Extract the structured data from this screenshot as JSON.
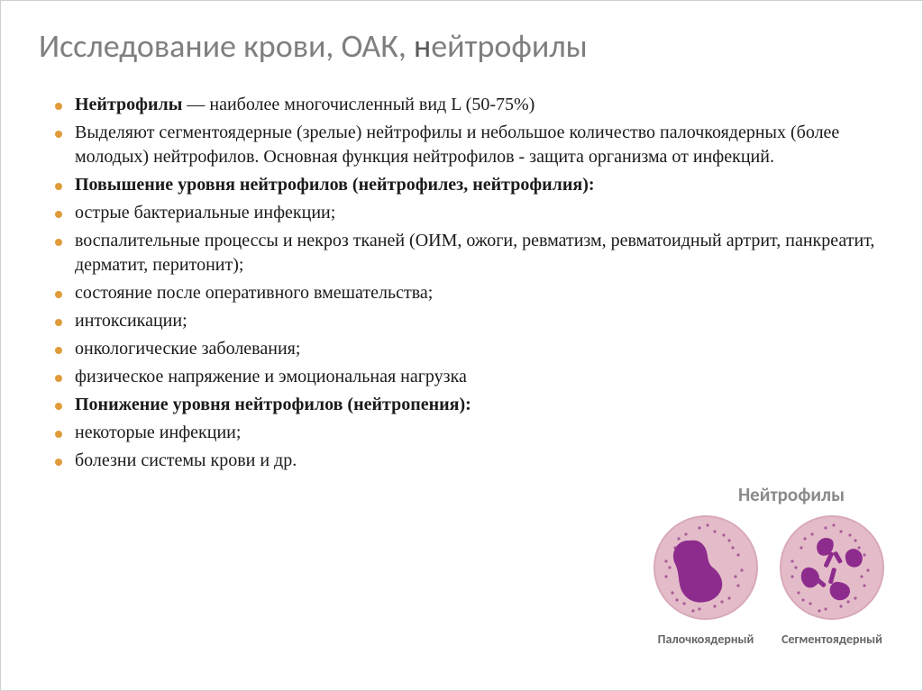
{
  "title": {
    "prefix": "Исследование крови, ОАК, ",
    "thin": "н",
    "rest": "ейтрофилы"
  },
  "bullets": [
    {
      "html": "<span class='bold'>Нейтрофилы</span> — наиболее многочисленный вид L (50-75%)"
    },
    {
      "html": "Выделяют сегментоядерные (зрелые) нейтрофилы и небольшое количество палочкоядерных (более молодых) нейтрофилов. Основная функция нейтрофилов - защита организма от инфекций."
    },
    {
      "html": "<span class='bold'>Повышение уровня нейтрофилов (нейтрофилез, нейтрофилия):</span>"
    },
    {
      "html": "острые бактериальные инфекции;"
    },
    {
      "html": "воспалительные процессы и некроз тканей (ОИМ, ожоги, ревматизм, ревматоидный артрит, панкреатит, дерматит, перитонит);"
    },
    {
      "html": "состояние после оперативного вмешательства;"
    },
    {
      "html": "интоксикации;"
    },
    {
      "html": "онкологические заболевания;"
    },
    {
      "html": "физическое напряжение и эмоциональная нагрузка"
    },
    {
      "html": "<span class='bold'>Понижение уровня нейтрофилов (нейтропения):</span>"
    },
    {
      "html": "некоторые инфекции;"
    },
    {
      "html": "болезни системы крови и др."
    }
  ],
  "cells": {
    "group_label": "Нейтрофилы",
    "left_caption": "Палочкоядерный",
    "right_caption": "Сегментоядерный",
    "cytoplasm_color": "#e4bcc9",
    "border_color": "#d8a9b9",
    "nucleus_color": "#8e2c8e",
    "granule_color": "#a85a9a",
    "background": "#ffffff"
  },
  "style": {
    "bullet_color": "#e09b3a",
    "title_color": "#7f7f7f",
    "body_fontsize": 20,
    "title_fontsize": 36
  }
}
